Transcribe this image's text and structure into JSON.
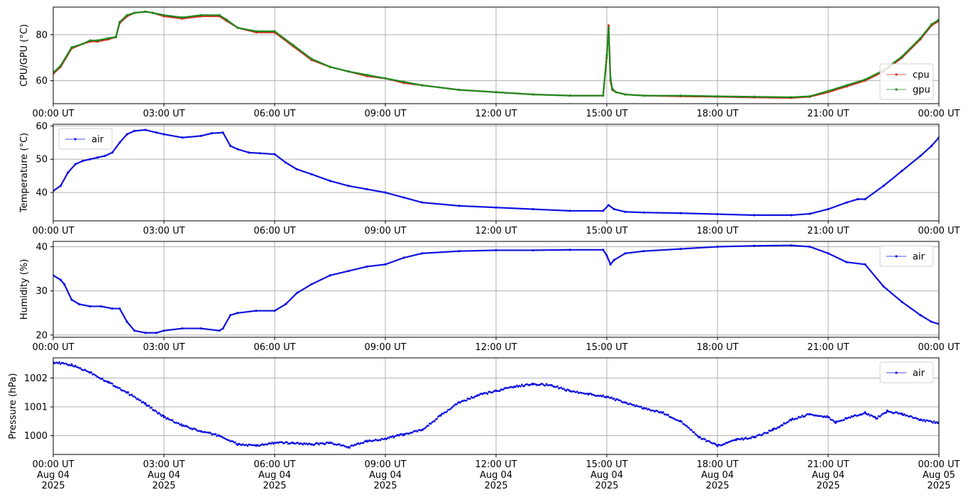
{
  "chart_data": [
    {
      "type": "line",
      "ylabel": "CPU/GPU (°C)",
      "ylim": [
        50,
        92
      ],
      "yticks": [
        60,
        80
      ],
      "legend": "lower-right",
      "grid": true,
      "x_ticks": [
        "00:00 UT",
        "03:00 UT",
        "06:00 UT",
        "09:00 UT",
        "12:00 UT",
        "15:00 UT",
        "18:00 UT",
        "21:00 UT",
        "00:00 UT"
      ],
      "series": [
        {
          "name": "cpu",
          "color": "#d62a1e",
          "x": [
            0,
            0.2,
            0.5,
            0.8,
            1.0,
            1.2,
            1.5,
            1.7,
            1.8,
            2.0,
            2.2,
            2.5,
            2.7,
            3.0,
            3.5,
            4.0,
            4.5,
            4.7,
            5.0,
            5.5,
            6.0,
            6.5,
            7.0,
            7.5,
            8.0,
            8.5,
            9.0,
            9.5,
            10.0,
            11.0,
            12.0,
            13.0,
            14.0,
            14.9,
            15.0,
            15.05,
            15.1,
            15.15,
            15.25,
            15.5,
            16.0,
            17.0,
            18.0,
            19.0,
            20.0,
            20.5,
            21.0,
            21.5,
            22.0,
            22.5,
            23.0,
            23.5,
            23.8,
            24.0
          ],
          "y": [
            63,
            66,
            74,
            76,
            77,
            77,
            78,
            79,
            85,
            88,
            89.5,
            90,
            89.5,
            88,
            87,
            88,
            88,
            86,
            83,
            81,
            81,
            75,
            69,
            66,
            64,
            62,
            61,
            59,
            58,
            56,
            55,
            54,
            53.5,
            53.5,
            70,
            84,
            60,
            56,
            55,
            54,
            53.5,
            53.2,
            53,
            52.7,
            52.5,
            53,
            55,
            57.5,
            60,
            64,
            70,
            78,
            84,
            86
          ]
        },
        {
          "name": "gpu",
          "color": "#1e8a1e",
          "x": [
            0,
            0.2,
            0.5,
            0.8,
            1.0,
            1.2,
            1.5,
            1.7,
            1.8,
            2.0,
            2.2,
            2.5,
            2.7,
            3.0,
            3.5,
            4.0,
            4.5,
            4.7,
            5.0,
            5.5,
            6.0,
            6.5,
            7.0,
            7.5,
            8.0,
            8.5,
            9.0,
            9.5,
            10.0,
            11.0,
            12.0,
            13.0,
            14.0,
            14.9,
            15.0,
            15.05,
            15.1,
            15.15,
            15.25,
            15.5,
            16.0,
            17.0,
            18.0,
            19.0,
            20.0,
            20.5,
            21.0,
            21.5,
            22.0,
            22.5,
            23.0,
            23.5,
            23.8,
            24.0
          ],
          "y": [
            63.5,
            66.5,
            74.5,
            76,
            77.5,
            77.5,
            78.5,
            79,
            85.5,
            88.5,
            89.5,
            90,
            89.5,
            88.5,
            87.5,
            88.5,
            88.5,
            86.5,
            83,
            81.5,
            81.5,
            75.5,
            69.5,
            66,
            64,
            62.5,
            61,
            59.5,
            58,
            56,
            55,
            54,
            53.5,
            53.5,
            71,
            83,
            61,
            56.5,
            55,
            54,
            53.5,
            53.5,
            53.2,
            53,
            52.8,
            53.2,
            55.5,
            58,
            60.5,
            64.5,
            70.5,
            78.5,
            84.5,
            86.5
          ]
        }
      ]
    },
    {
      "type": "line",
      "ylabel": "Temperature (°C)",
      "ylim": [
        31.5,
        60.5
      ],
      "yticks": [
        40,
        50,
        60
      ],
      "legend": "upper-left",
      "grid": true,
      "x_ticks": [
        "00:00 UT",
        "03:00 UT",
        "06:00 UT",
        "09:00 UT",
        "12:00 UT",
        "15:00 UT",
        "18:00 UT",
        "21:00 UT",
        "00:00 UT"
      ],
      "series": [
        {
          "name": "air",
          "color": "#1010e0",
          "x": [
            0,
            0.2,
            0.4,
            0.6,
            0.8,
            1.0,
            1.2,
            1.4,
            1.6,
            1.8,
            2.0,
            2.2,
            2.5,
            2.8,
            3.0,
            3.5,
            4.0,
            4.3,
            4.6,
            4.8,
            5.0,
            5.3,
            5.6,
            6.0,
            6.3,
            6.6,
            7.0,
            7.5,
            8.0,
            8.5,
            9.0,
            9.5,
            10.0,
            11.0,
            12.0,
            13.0,
            14.0,
            14.9,
            15.05,
            15.2,
            15.5,
            16.0,
            17.0,
            18.0,
            19.0,
            20.0,
            20.5,
            21.0,
            21.5,
            21.8,
            22.0,
            22.5,
            23.0,
            23.5,
            23.8,
            24.0
          ],
          "y": [
            40.5,
            42,
            46,
            48.5,
            49.5,
            50,
            50.5,
            51,
            52,
            55,
            57.5,
            58.5,
            58.8,
            58,
            57.5,
            56.5,
            57,
            57.8,
            58,
            54,
            53,
            52,
            51.8,
            51.5,
            49,
            47,
            45.5,
            43.5,
            42,
            41,
            40,
            38.5,
            37,
            36,
            35.5,
            35,
            34.5,
            34.5,
            36.2,
            35,
            34.2,
            34,
            33.8,
            33.5,
            33.2,
            33.2,
            33.6,
            35,
            37,
            38,
            38,
            42,
            46.5,
            51,
            54,
            56.5
          ]
        }
      ]
    },
    {
      "type": "line",
      "ylabel": "Humidity (%)",
      "ylim": [
        19.5,
        41.2
      ],
      "yticks": [
        20,
        30,
        40
      ],
      "legend": "upper-right",
      "grid": true,
      "x_ticks": [
        "00:00 UT",
        "03:00 UT",
        "06:00 UT",
        "09:00 UT",
        "12:00 UT",
        "15:00 UT",
        "18:00 UT",
        "21:00 UT",
        "00:00 UT"
      ],
      "series": [
        {
          "name": "air",
          "color": "#1010e0",
          "x": [
            0,
            0.2,
            0.3,
            0.5,
            0.7,
            1.0,
            1.3,
            1.6,
            1.8,
            2.0,
            2.2,
            2.5,
            2.8,
            3.0,
            3.5,
            4.0,
            4.5,
            4.6,
            4.8,
            5.0,
            5.5,
            6.0,
            6.3,
            6.6,
            7.0,
            7.5,
            8.0,
            8.5,
            9.0,
            9.5,
            10.0,
            11.0,
            12.0,
            13.0,
            14.0,
            14.9,
            15.0,
            15.1,
            15.2,
            15.5,
            16.0,
            17.0,
            18.0,
            19.0,
            20.0,
            20.5,
            21.0,
            21.5,
            22.0,
            22.5,
            23.0,
            23.5,
            23.8,
            24.0
          ],
          "y": [
            33.5,
            32.5,
            31.5,
            28,
            27,
            26.5,
            26.5,
            26,
            26,
            23,
            21,
            20.5,
            20.5,
            21,
            21.5,
            21.5,
            21,
            21.5,
            24.5,
            25,
            25.5,
            25.5,
            27,
            29.5,
            31.5,
            33.5,
            34.5,
            35.5,
            36,
            37.5,
            38.5,
            39,
            39.2,
            39.2,
            39.3,
            39.3,
            38,
            36,
            37,
            38.5,
            39,
            39.5,
            40,
            40.2,
            40.3,
            40,
            38.5,
            36.5,
            36,
            31,
            27.5,
            24.5,
            23,
            22.5
          ]
        }
      ]
    },
    {
      "type": "scatter",
      "ylabel": "Pressure (hPa)",
      "ylim": [
        999.35,
        1002.7
      ],
      "yticks": [
        1000,
        1001,
        1002
      ],
      "legend": "upper-right",
      "grid": true,
      "x_ticks": [
        "00:00 UT\nAug 04\n2025",
        "03:00 UT\nAug 04\n2025",
        "06:00 UT\nAug 04\n2025",
        "09:00 UT\nAug 04\n2025",
        "12:00 UT\nAug 04\n2025",
        "15:00 UT\nAug 04\n2025",
        "18:00 UT\nAug 04\n2025",
        "21:00 UT\nAug 04\n2025",
        "00:00 UT\nAug 05\n2025"
      ],
      "series": [
        {
          "name": "air",
          "color": "#1010e0",
          "x": [
            0,
            0.5,
            1.0,
            1.5,
            2.0,
            2.5,
            3.0,
            3.5,
            4.0,
            4.5,
            5.0,
            5.5,
            6.0,
            6.5,
            7.0,
            7.5,
            8.0,
            8.5,
            9.0,
            9.5,
            10.0,
            10.5,
            11.0,
            11.5,
            12.0,
            12.5,
            13.0,
            13.5,
            14.0,
            14.5,
            15.0,
            15.5,
            16.0,
            16.5,
            17.0,
            17.5,
            18.0,
            18.5,
            19.0,
            19.5,
            20.0,
            20.5,
            21.0,
            21.2,
            21.5,
            22.0,
            22.3,
            22.6,
            23.0,
            23.5,
            24.0
          ],
          "y": [
            1002.55,
            1002.45,
            1002.2,
            1001.85,
            1001.5,
            1001.1,
            1000.65,
            1000.35,
            1000.15,
            1000.0,
            999.7,
            999.65,
            999.75,
            999.75,
            999.7,
            999.75,
            999.6,
            999.8,
            999.9,
            1000.05,
            1000.2,
            1000.7,
            1001.15,
            1001.4,
            1001.55,
            1001.7,
            1001.8,
            1001.75,
            1001.55,
            1001.45,
            1001.35,
            1001.15,
            1000.95,
            1000.8,
            1000.5,
            999.95,
            999.65,
            999.85,
            999.95,
            1000.2,
            1000.55,
            1000.75,
            1000.65,
            1000.45,
            1000.6,
            1000.8,
            1000.6,
            1000.85,
            1000.75,
            1000.55,
            1000.45
          ]
        }
      ]
    }
  ]
}
